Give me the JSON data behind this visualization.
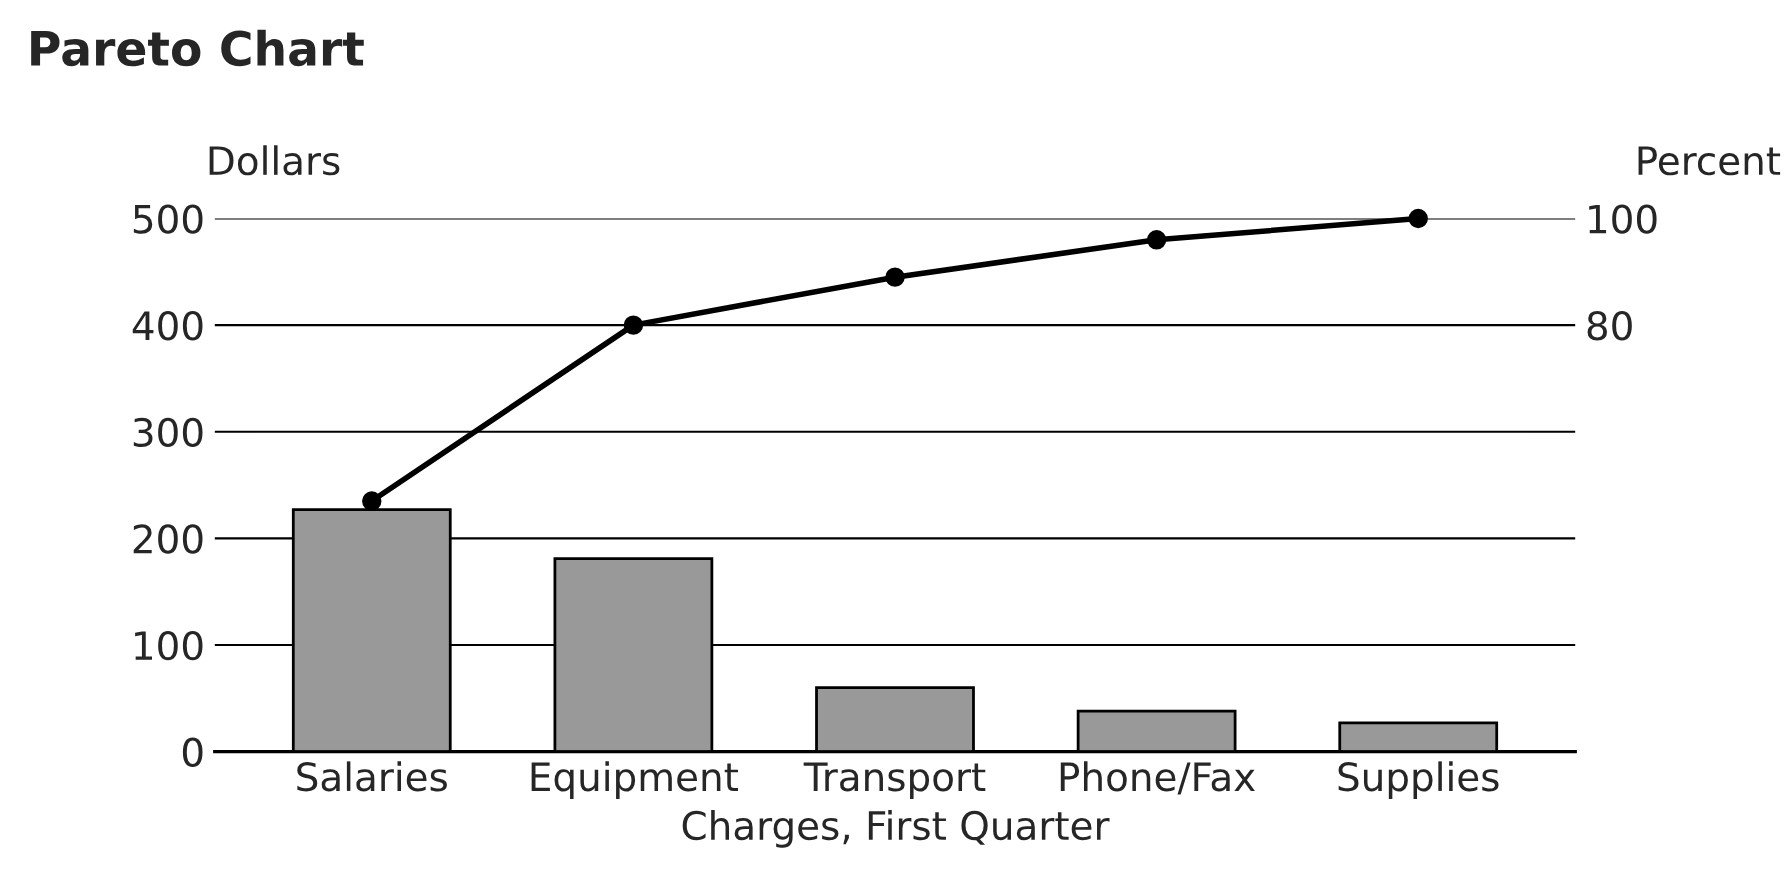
{
  "chart_data": {
    "type": "bar",
    "title": "Pareto Chart",
    "xlabel": "Charges, First Quarter",
    "ylabel": "Dollars",
    "y2label": "Percent",
    "categories": [
      "Salaries",
      "Equipment",
      "Transport",
      "Phone/Fax",
      "Supplies"
    ],
    "series": [
      {
        "color": "#999999",
        "values": [
          227,
          181,
          60,
          38,
          27
        ]
      },
      {
        "type": "line",
        "axis": "y2",
        "color": "#000000",
        "values": [
          47,
          80,
          89,
          96,
          100
        ]
      }
    ],
    "ylim": [
      0,
      500
    ],
    "yticks": [
      0,
      100,
      200,
      300,
      400,
      500
    ],
    "y2lim": [
      0,
      100
    ],
    "y2ticks": [
      80,
      100
    ],
    "grid": "y",
    "marker": "circle",
    "line_style": "solid",
    "legend": false
  }
}
